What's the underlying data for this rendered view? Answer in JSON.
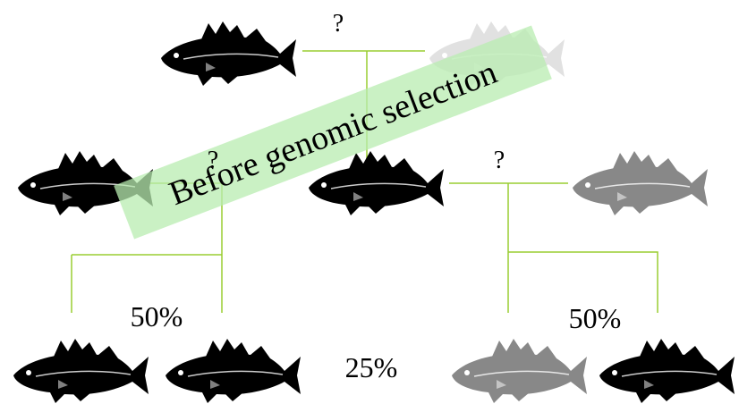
{
  "labels": {
    "questions": [
      "?",
      "?",
      "?"
    ],
    "percentages": [
      "50%",
      "50%",
      "25%"
    ]
  },
  "banner": "Before genomic selection"
}
